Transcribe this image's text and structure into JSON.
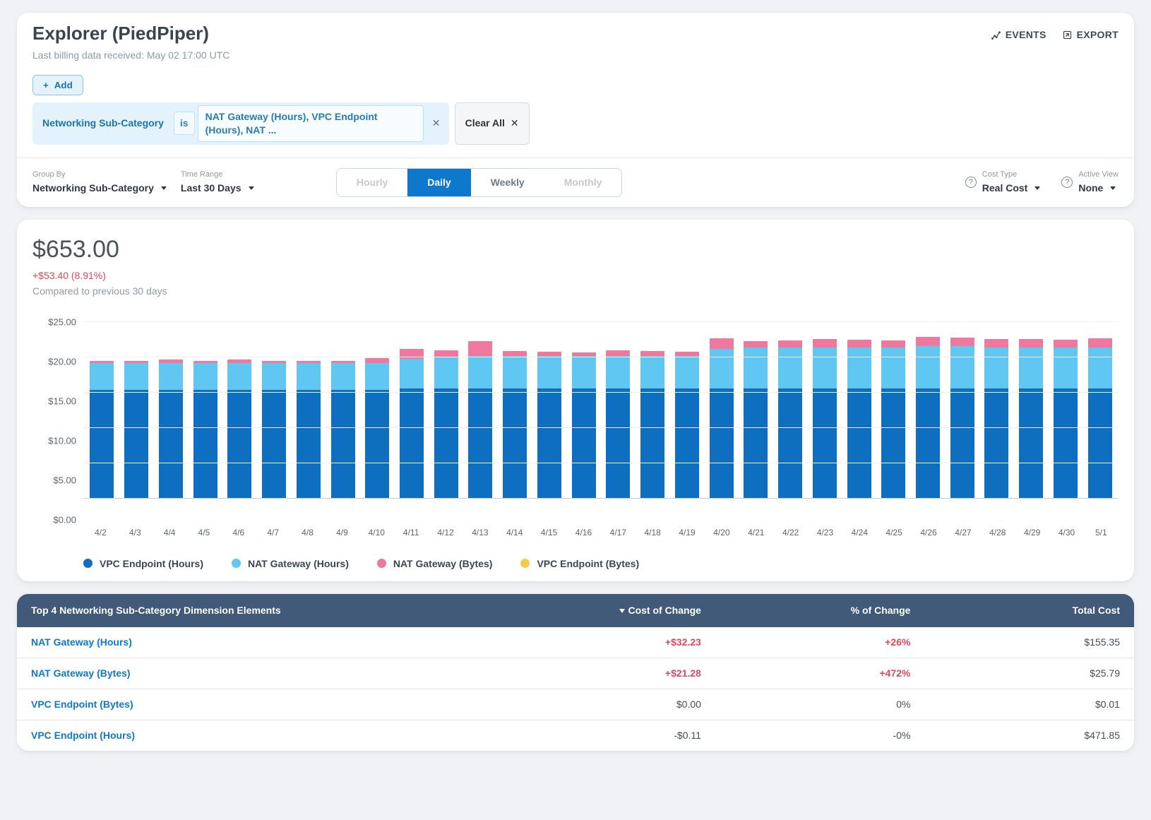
{
  "header": {
    "title": "Explorer (PiedPiper)",
    "subtitle": "Last billing data received: May 02 17:00 UTC",
    "events_label": "EVENTS",
    "export_label": "EXPORT",
    "add_label": "Add",
    "filter": {
      "dimension": "Networking Sub-Category",
      "op": "is",
      "value_text": "NAT Gateway (Hours), VPC Endpoint (Hours), NAT ..."
    },
    "clear_label": "Clear All"
  },
  "toolbar": {
    "group_by_label": "Group By",
    "group_by_value": "Networking Sub-Category",
    "time_range_label": "Time Range",
    "time_range_value": "Last 30 Days",
    "granularity": {
      "options": [
        "Hourly",
        "Daily",
        "Weekly",
        "Monthly"
      ],
      "active": "Daily",
      "disabled": [
        "Hourly",
        "Monthly"
      ]
    },
    "cost_type_label": "Cost Type",
    "cost_type_value": "Real Cost",
    "active_view_label": "Active View",
    "active_view_value": "None"
  },
  "summary": {
    "total": "$653.00",
    "delta": "+$53.40 (8.91%)",
    "compared": "Compared to previous 30 days"
  },
  "chart": {
    "type": "stacked-bar",
    "y": {
      "max": 25,
      "step": 5,
      "prefix": "$",
      "ticks": [
        "$25.00",
        "$20.00",
        "$15.00",
        "$10.00",
        "$5.00",
        "$0.00"
      ]
    },
    "series": [
      {
        "name": "VPC Endpoint (Hours)",
        "color": "#0e6ebf"
      },
      {
        "name": "NAT Gateway (Hours)",
        "color": "#5fc7f1"
      },
      {
        "name": "NAT Gateway (Bytes)",
        "color": "#f0789e"
      },
      {
        "name": "VPC Endpoint (Bytes)",
        "color": "#f7c948"
      }
    ],
    "categories": [
      "4/2",
      "4/3",
      "4/4",
      "4/5",
      "4/6",
      "4/7",
      "4/8",
      "4/9",
      "4/10",
      "4/11",
      "4/12",
      "4/13",
      "4/14",
      "4/15",
      "4/16",
      "4/17",
      "4/18",
      "4/19",
      "4/20",
      "4/21",
      "4/22",
      "4/23",
      "4/24",
      "4/25",
      "4/26",
      "4/27",
      "4/28",
      "4/29",
      "4/30",
      "5/1"
    ],
    "stacks": [
      [
        15.4,
        3.8,
        0.3,
        0.0
      ],
      [
        15.4,
        3.8,
        0.3,
        0.0
      ],
      [
        15.4,
        3.8,
        0.5,
        0.0
      ],
      [
        15.4,
        3.8,
        0.3,
        0.0
      ],
      [
        15.4,
        3.8,
        0.5,
        0.0
      ],
      [
        15.4,
        3.8,
        0.3,
        0.0
      ],
      [
        15.4,
        3.8,
        0.3,
        0.0
      ],
      [
        15.4,
        3.8,
        0.3,
        0.0
      ],
      [
        15.4,
        3.8,
        0.7,
        0.0
      ],
      [
        15.6,
        4.2,
        1.4,
        0.0
      ],
      [
        15.6,
        4.4,
        1.0,
        0.0
      ],
      [
        15.6,
        4.6,
        2.1,
        0.0
      ],
      [
        15.6,
        4.6,
        0.7,
        0.0
      ],
      [
        15.6,
        4.6,
        0.6,
        0.0
      ],
      [
        15.6,
        4.6,
        0.5,
        0.0
      ],
      [
        15.6,
        4.6,
        0.8,
        0.0
      ],
      [
        15.6,
        4.6,
        0.7,
        0.0
      ],
      [
        15.6,
        4.6,
        0.6,
        0.0
      ],
      [
        15.6,
        5.6,
        1.5,
        0.0
      ],
      [
        15.6,
        5.8,
        0.9,
        0.0
      ],
      [
        15.6,
        5.8,
        1.0,
        0.0
      ],
      [
        15.6,
        5.8,
        1.2,
        0.0
      ],
      [
        15.6,
        5.8,
        1.1,
        0.0
      ],
      [
        15.6,
        5.8,
        1.0,
        0.0
      ],
      [
        15.6,
        6.0,
        1.3,
        0.0
      ],
      [
        15.6,
        6.0,
        1.2,
        0.0
      ],
      [
        15.6,
        5.8,
        1.2,
        0.0
      ],
      [
        15.6,
        5.8,
        1.2,
        0.0
      ],
      [
        15.6,
        5.8,
        1.1,
        0.0
      ],
      [
        15.6,
        5.8,
        1.3,
        0.0
      ]
    ],
    "background_color": "#ffffff",
    "grid_color": "#f0f1f3",
    "baseline_color": "#c8ccd1"
  },
  "table": {
    "title": "Top 4 Networking Sub-Category Dimension Elements",
    "cols": [
      "Cost of Change",
      "% of Change",
      "Total Cost"
    ],
    "rows": [
      {
        "name": "NAT Gateway (Hours)",
        "cost": "+$32.23",
        "pct": "+26%",
        "total": "$155.35",
        "pos": true
      },
      {
        "name": "NAT Gateway (Bytes)",
        "cost": "+$21.28",
        "pct": "+472%",
        "total": "$25.79",
        "pos": true
      },
      {
        "name": "VPC Endpoint (Bytes)",
        "cost": "$0.00",
        "pct": "0%",
        "total": "$0.01",
        "pos": false
      },
      {
        "name": "VPC Endpoint (Hours)",
        "cost": "-$0.11",
        "pct": "-0%",
        "total": "$471.85",
        "pos": false
      }
    ]
  }
}
